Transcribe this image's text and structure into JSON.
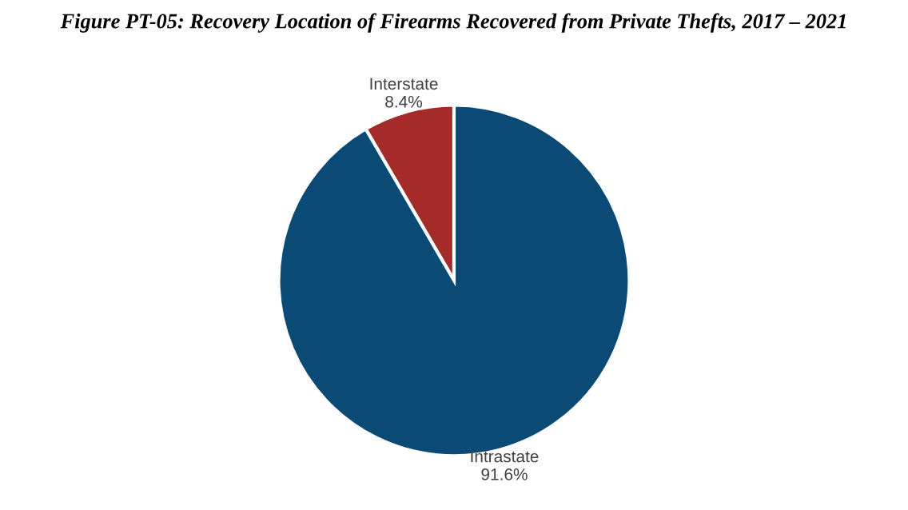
{
  "chart_data": {
    "type": "pie",
    "title": "Figure PT-05: Recovery Location of Firearms Recovered from Private Thefts, 2017 – 2021",
    "categories": [
      "Interstate",
      "Intrastate"
    ],
    "values": [
      8.4,
      91.6
    ],
    "value_labels": [
      "8.4%",
      "91.6%"
    ],
    "colors": [
      "#a52b2b",
      "#0b4a74"
    ],
    "legend": false
  }
}
